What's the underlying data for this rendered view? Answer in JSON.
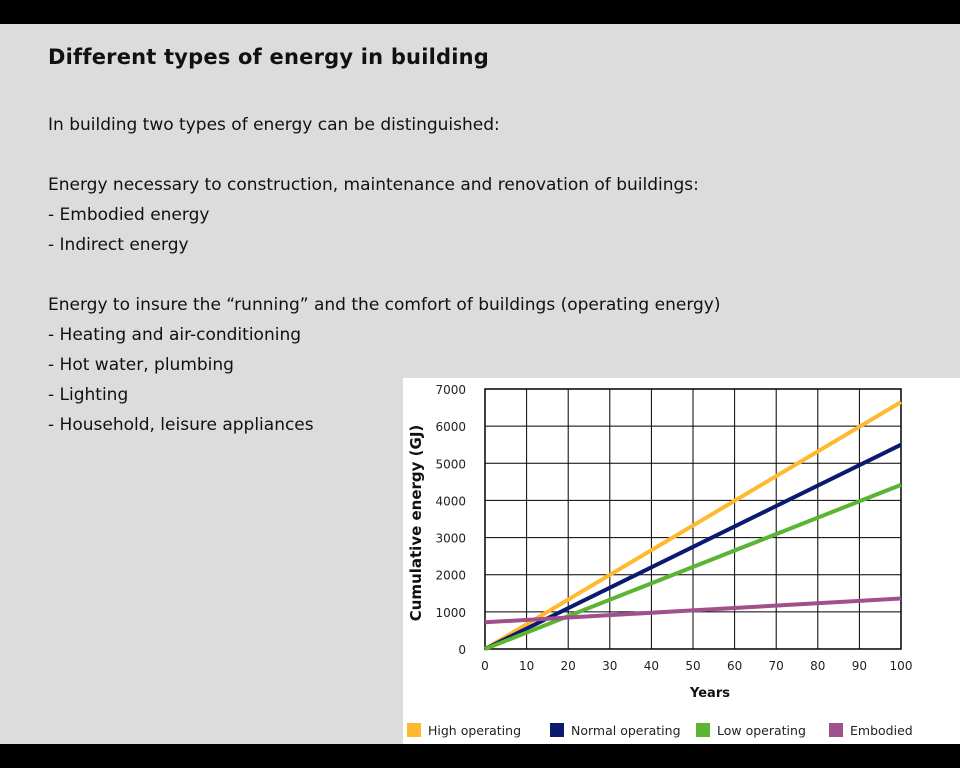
{
  "slide": {
    "title": "Different types of energy in building",
    "intro": "In building two types of energy can be distinguished:",
    "group1_heading": "Energy necessary to construction, maintenance and renovation of buildings:",
    "group1_items": [
      "- Embodied energy",
      "- Indirect energy"
    ],
    "group2_heading": "Energy to insure the “running” and the comfort of buildings (operating energy)",
    "group2_items": [
      "- Heating and air-conditioning",
      "- Hot water, plumbing",
      "- Lighting",
      "- Household, leisure appliances"
    ]
  },
  "chart_data": {
    "type": "line",
    "title": "",
    "xlabel": "Years",
    "ylabel": "Cumulative energy (GJ)",
    "xlim": [
      0,
      100
    ],
    "ylim": [
      0,
      7000
    ],
    "xticks": [
      0,
      10,
      20,
      30,
      40,
      50,
      60,
      70,
      80,
      90,
      100
    ],
    "yticks": [
      0,
      1000,
      2000,
      3000,
      4000,
      5000,
      6000,
      7000
    ],
    "grid": true,
    "legend_position": "bottom",
    "x": [
      0,
      100
    ],
    "series": [
      {
        "name": "High operating",
        "color": "#ffb92e",
        "values": [
          0,
          6650
        ]
      },
      {
        "name": "Normal operating",
        "color": "#0b1a6e",
        "values": [
          0,
          5500
        ]
      },
      {
        "name": "Low operating",
        "color": "#5bb432",
        "values": [
          0,
          4420
        ]
      },
      {
        "name": "Embodied",
        "color": "#a0508c",
        "values": [
          720,
          1360
        ]
      }
    ]
  }
}
